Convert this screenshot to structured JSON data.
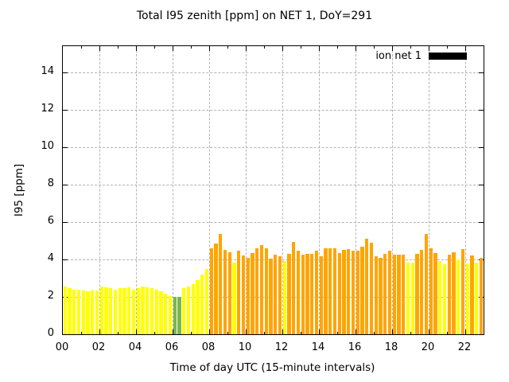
{
  "title": "Total I95 zenith [ppm] on NET 1, DoY=291",
  "legend": {
    "label": "ion net 1",
    "swatch_color": "#000000"
  },
  "chart_data": {
    "type": "bar",
    "title": "Total I95 zenith [ppm] on NET 1, DoY=291",
    "xlabel": "Time of day UTC (15-minute intervals)",
    "ylabel": "I95 [ppm]",
    "ylim": [
      0,
      15.4
    ],
    "yticks": [
      0,
      2,
      4,
      6,
      8,
      10,
      12,
      14
    ],
    "xtick_labels": [
      "00",
      "02",
      "04",
      "06",
      "08",
      "10",
      "12",
      "14",
      "16",
      "18",
      "20",
      "22"
    ],
    "xtick_hours": [
      0,
      2,
      4,
      6,
      8,
      10,
      12,
      14,
      16,
      18,
      20,
      22
    ],
    "hours_span": 23,
    "interval_minutes": 15,
    "grid": true,
    "legend_position": "top-right-inside",
    "legend_entries": [
      {
        "name": "ion net 1",
        "color": "#000000"
      }
    ],
    "palette": {
      "yellow": "#ffff00",
      "green": "#7ab648",
      "orange": "#ffa500"
    },
    "x": [
      "00:00",
      "00:15",
      "00:30",
      "00:45",
      "01:00",
      "01:15",
      "01:30",
      "01:45",
      "02:00",
      "02:15",
      "02:30",
      "02:45",
      "03:00",
      "03:15",
      "03:30",
      "03:45",
      "04:00",
      "04:15",
      "04:30",
      "04:45",
      "05:00",
      "05:15",
      "05:30",
      "05:45",
      "06:00",
      "06:15",
      "06:30",
      "06:45",
      "07:00",
      "07:15",
      "07:30",
      "07:45",
      "08:00",
      "08:15",
      "08:30",
      "08:45",
      "09:00",
      "09:15",
      "09:30",
      "09:45",
      "10:00",
      "10:15",
      "10:30",
      "10:45",
      "11:00",
      "11:15",
      "11:30",
      "11:45",
      "12:00",
      "12:15",
      "12:30",
      "12:45",
      "13:00",
      "13:15",
      "13:30",
      "13:45",
      "14:00",
      "14:15",
      "14:30",
      "14:45",
      "15:00",
      "15:15",
      "15:30",
      "15:45",
      "16:00",
      "16:15",
      "16:30",
      "16:45",
      "17:00",
      "17:15",
      "17:30",
      "17:45",
      "18:00",
      "18:15",
      "18:30",
      "18:45",
      "19:00",
      "19:15",
      "19:30",
      "19:45",
      "20:00",
      "20:15",
      "20:30",
      "20:45",
      "21:00",
      "21:15",
      "21:30",
      "21:45",
      "22:00",
      "22:15",
      "22:30",
      "22:45"
    ],
    "values": [
      2.55,
      2.45,
      2.4,
      2.4,
      2.35,
      2.3,
      2.35,
      2.35,
      2.55,
      2.5,
      2.45,
      2.4,
      2.45,
      2.45,
      2.5,
      2.4,
      2.45,
      2.55,
      2.5,
      2.45,
      2.4,
      2.3,
      2.15,
      2.05,
      2.0,
      2.0,
      2.45,
      2.55,
      2.7,
      2.9,
      3.2,
      3.5,
      4.6,
      4.85,
      5.35,
      4.5,
      4.4,
      3.85,
      4.45,
      4.2,
      4.1,
      4.35,
      4.6,
      4.75,
      4.6,
      4.05,
      4.25,
      4.15,
      3.9,
      4.3,
      4.95,
      4.45,
      4.25,
      4.3,
      4.3,
      4.45,
      4.15,
      4.6,
      4.6,
      4.6,
      4.35,
      4.5,
      4.55,
      4.45,
      4.45,
      4.7,
      5.1,
      4.9,
      4.15,
      4.1,
      4.3,
      4.45,
      4.25,
      4.25,
      4.25,
      3.85,
      3.85,
      4.3,
      4.5,
      5.35,
      4.6,
      4.35,
      3.9,
      3.75,
      4.25,
      4.4,
      4.0,
      4.55,
      3.8,
      4.2,
      3.85,
      4.1
    ],
    "colors": [
      "yellow",
      "yellow",
      "yellow",
      "yellow",
      "yellow",
      "yellow",
      "yellow",
      "yellow",
      "yellow",
      "yellow",
      "yellow",
      "yellow",
      "yellow",
      "yellow",
      "yellow",
      "yellow",
      "yellow",
      "yellow",
      "yellow",
      "yellow",
      "yellow",
      "yellow",
      "yellow",
      "yellow",
      "green",
      "green",
      "yellow",
      "yellow",
      "yellow",
      "yellow",
      "yellow",
      "yellow",
      "orange",
      "orange",
      "orange",
      "orange",
      "orange",
      "yellow",
      "orange",
      "orange",
      "orange",
      "orange",
      "orange",
      "orange",
      "orange",
      "orange",
      "orange",
      "orange",
      "yellow",
      "orange",
      "orange",
      "orange",
      "orange",
      "orange",
      "orange",
      "orange",
      "orange",
      "orange",
      "orange",
      "orange",
      "orange",
      "orange",
      "orange",
      "orange",
      "orange",
      "orange",
      "orange",
      "orange",
      "orange",
      "orange",
      "orange",
      "orange",
      "orange",
      "orange",
      "orange",
      "yellow",
      "yellow",
      "orange",
      "orange",
      "orange",
      "orange",
      "orange",
      "yellow",
      "yellow",
      "orange",
      "orange",
      "yellow",
      "orange",
      "yellow",
      "orange",
      "yellow",
      "orange"
    ]
  }
}
